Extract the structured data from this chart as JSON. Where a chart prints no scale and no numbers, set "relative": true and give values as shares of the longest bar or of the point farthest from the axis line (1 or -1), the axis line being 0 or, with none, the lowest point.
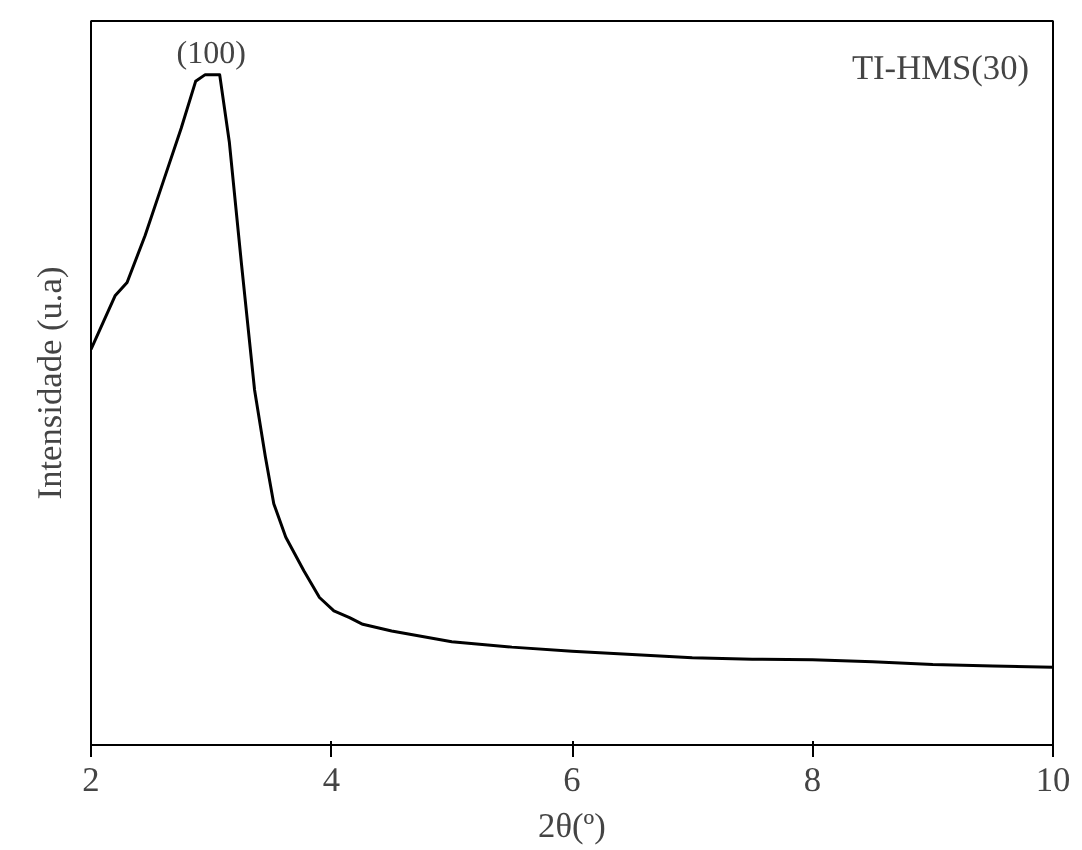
{
  "chart_data": {
    "type": "line",
    "relative": true,
    "xlabel": "2θ(º)",
    "ylabel": "Intensidade (u.a)",
    "xlim": [
      2,
      10
    ],
    "xticks": [
      2,
      4,
      6,
      8,
      10
    ],
    "tick_labels": "x",
    "grid": false,
    "series": [
      {
        "color": "#000000",
        "x": [
          2.0,
          2.1,
          2.2,
          2.3,
          2.45,
          2.6,
          2.75,
          2.87,
          2.95,
          3.07,
          3.15,
          3.25,
          3.36,
          3.45,
          3.52,
          3.62,
          3.77,
          3.9,
          4.02,
          4.15,
          4.26,
          4.5,
          5.0,
          5.5,
          6.0,
          6.5,
          7.0,
          7.5,
          8.0,
          8.5,
          9.0,
          9.5,
          10.0
        ],
        "values": [
          0.59,
          0.63,
          0.67,
          0.69,
          0.76,
          0.84,
          0.92,
          0.99,
          1.0,
          1.0,
          0.9,
          0.72,
          0.53,
          0.43,
          0.36,
          0.31,
          0.26,
          0.22,
          0.2,
          0.19,
          0.18,
          0.17,
          0.154,
          0.146,
          0.14,
          0.135,
          0.13,
          0.128,
          0.127,
          0.124,
          0.12,
          0.118,
          0.116
        ]
      }
    ],
    "annotations": [
      {
        "text": "(100)",
        "x": 3.0,
        "y": 1.0
      },
      "TI-HMS(30)"
    ]
  }
}
